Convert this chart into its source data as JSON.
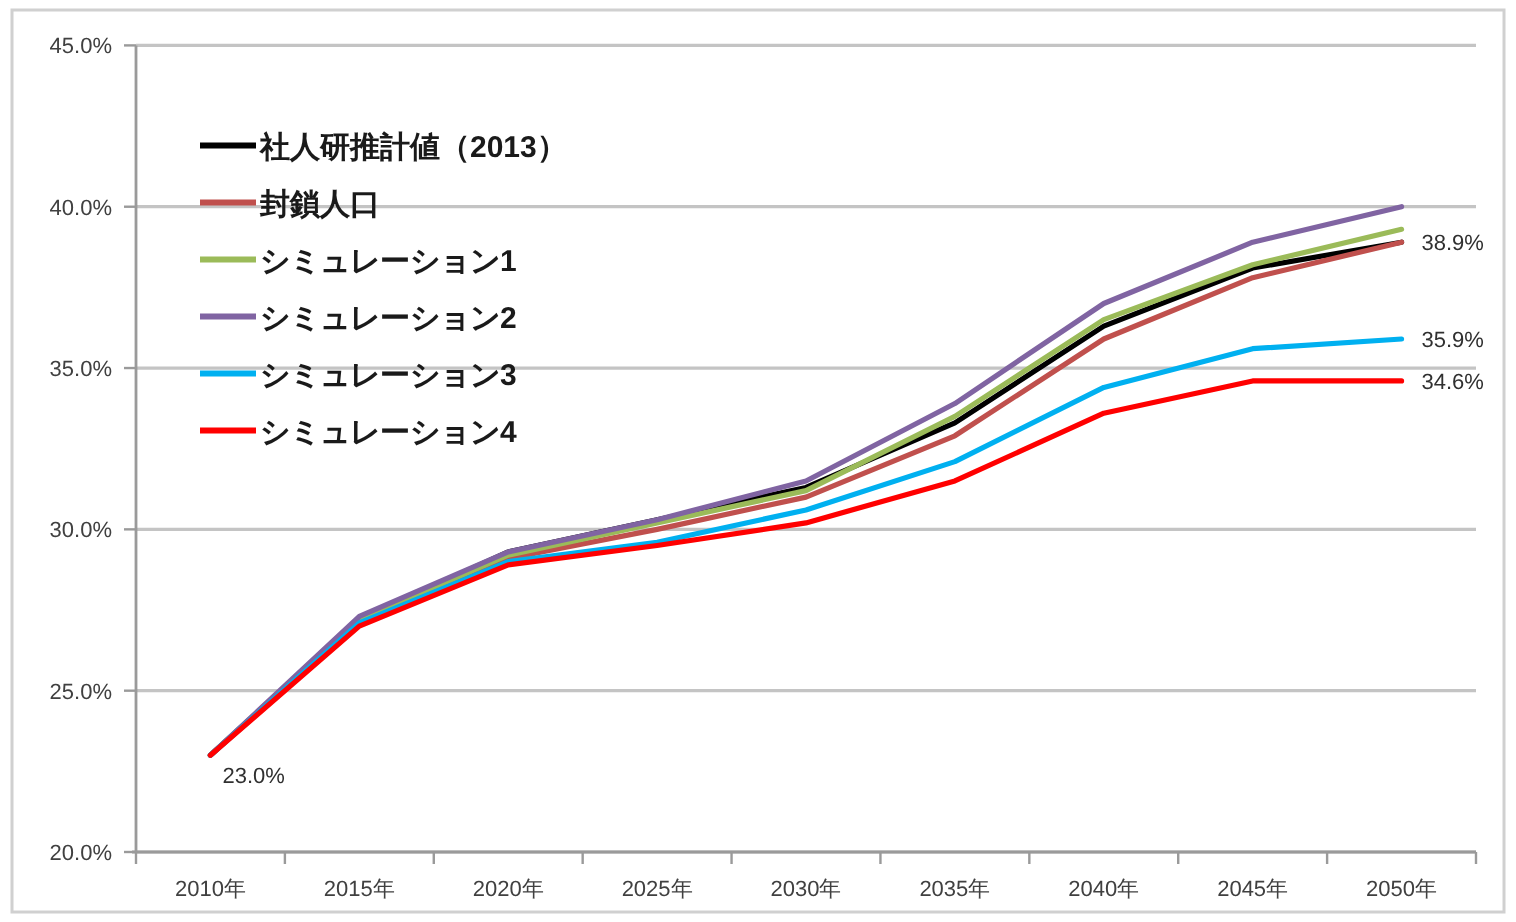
{
  "chart_data": {
    "type": "line",
    "categories": [
      "2010年",
      "2015年",
      "2020年",
      "2025年",
      "2030年",
      "2035年",
      "2040年",
      "2045年",
      "2050年"
    ],
    "ylim": [
      20,
      45
    ],
    "yticks": [
      {
        "value": 20,
        "label": "20.0%"
      },
      {
        "value": 25,
        "label": "25.0%"
      },
      {
        "value": 30,
        "label": "30.0%"
      },
      {
        "value": 35,
        "label": "35.0%"
      },
      {
        "value": 40,
        "label": "40.0%"
      },
      {
        "value": 45,
        "label": "45.0%"
      }
    ],
    "grid": "y",
    "legend": "top left",
    "series": [
      {
        "name": "社人研推計値（2013）",
        "color": "#000000",
        "values": [
          23.0,
          27.2,
          29.3,
          30.3,
          31.3,
          33.3,
          36.3,
          38.1,
          38.9
        ],
        "value_labels": [
          null,
          null,
          null,
          null,
          null,
          null,
          null,
          null,
          "38.9%"
        ]
      },
      {
        "name": "封鎖人口",
        "color": "#c0504d",
        "values": [
          23.0,
          27.2,
          29.1,
          30.0,
          31.0,
          32.9,
          35.9,
          37.8,
          38.9
        ]
      },
      {
        "name": "シミュレーション1",
        "color": "#9bbb59",
        "values": [
          23.0,
          27.2,
          29.2,
          30.2,
          31.2,
          33.5,
          36.5,
          38.2,
          39.3
        ]
      },
      {
        "name": "シミュレーション2",
        "color": "#8064a2",
        "values": [
          23.0,
          27.3,
          29.3,
          30.3,
          31.5,
          33.9,
          37.0,
          38.9,
          40.0
        ]
      },
      {
        "name": "シミュレーション3",
        "color": "#00b0f0",
        "values": [
          23.0,
          27.1,
          29.0,
          29.6,
          30.6,
          32.1,
          34.4,
          35.6,
          35.9
        ],
        "value_labels": [
          null,
          null,
          null,
          null,
          null,
          null,
          null,
          null,
          "35.9%"
        ]
      },
      {
        "name": "シミュレーション4",
        "color": "#ff0000",
        "values": [
          23.0,
          27.0,
          28.9,
          29.5,
          30.2,
          31.5,
          33.6,
          34.6,
          34.6
        ],
        "value_labels": [
          "23.0%",
          null,
          null,
          null,
          null,
          null,
          null,
          null,
          "34.6%"
        ]
      }
    ]
  }
}
